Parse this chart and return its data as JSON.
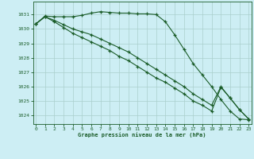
{
  "bg_color": "#cdeef4",
  "grid_color": "#aacfcc",
  "line_color": "#1a5c28",
  "title": "Graphe pression niveau de la mer (hPa)",
  "ylim": [
    1023.4,
    1031.9
  ],
  "yticks": [
    1024,
    1025,
    1026,
    1027,
    1028,
    1029,
    1030,
    1031
  ],
  "xlim": [
    -0.3,
    23.3
  ],
  "xticks": [
    0,
    1,
    2,
    3,
    4,
    5,
    6,
    7,
    8,
    9,
    10,
    11,
    12,
    13,
    14,
    15,
    16,
    17,
    18,
    19,
    20,
    21,
    22,
    23
  ],
  "line1": [
    1030.35,
    1030.9,
    1030.85,
    1030.85,
    1030.85,
    1030.95,
    1031.1,
    1031.2,
    1031.15,
    1031.1,
    1031.1,
    1031.05,
    1031.05,
    1031.0,
    1030.5,
    1029.6,
    1028.6,
    1027.6,
    1026.8,
    1026.0,
    1025.1,
    1024.3,
    1023.75,
    1023.7
  ],
  "line2": [
    1030.35,
    1030.85,
    1030.5,
    1030.1,
    1029.7,
    1029.4,
    1029.1,
    1028.8,
    1028.5,
    1028.1,
    1027.8,
    1027.4,
    1027.0,
    1026.6,
    1026.3,
    1025.9,
    1025.5,
    1025.0,
    1024.7,
    1024.3,
    1025.95,
    1025.2,
    1024.4,
    1023.75
  ],
  "line3": [
    1030.35,
    1030.85,
    1030.6,
    1030.3,
    1030.0,
    1029.8,
    1029.6,
    1029.3,
    1029.0,
    1028.7,
    1028.4,
    1028.0,
    1027.6,
    1027.2,
    1026.8,
    1026.4,
    1026.0,
    1025.5,
    1025.1,
    1024.7,
    1026.0,
    1025.2,
    1024.4,
    1023.75
  ]
}
